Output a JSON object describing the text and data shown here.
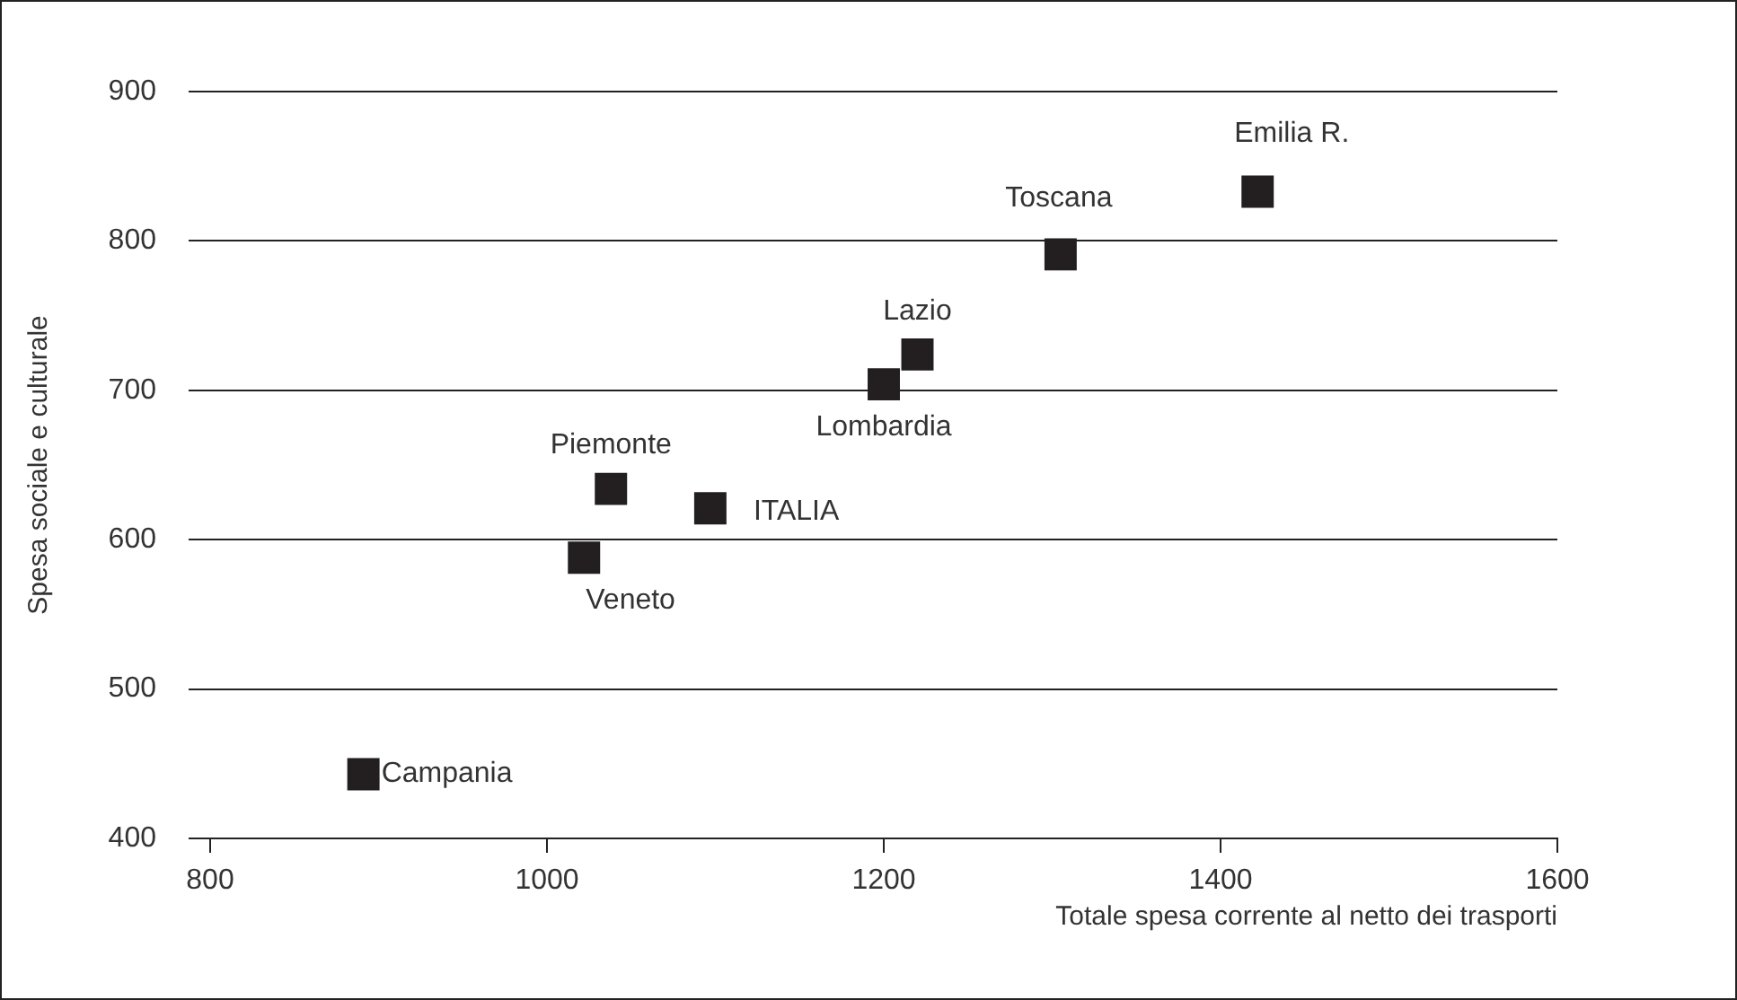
{
  "chart_data": {
    "type": "scatter",
    "xlabel": "Totale spesa corrente al netto dei trasporti",
    "ylabel": "Spesa sociale e culturale",
    "x": [
      891,
      1022,
      1038,
      1097,
      1200,
      1220,
      1305,
      1422
    ],
    "values": [
      443,
      588,
      634,
      621,
      704,
      724,
      791,
      833
    ],
    "color": "#231f20",
    "marker": "square",
    "grid": "y",
    "xlim": [
      800,
      1600
    ],
    "xticks": [
      800,
      1000,
      1200,
      1400,
      1600
    ],
    "ylim": [
      400,
      900
    ],
    "yticks": [
      400,
      500,
      600,
      700,
      800,
      900
    ],
    "annotations": [
      {
        "text": "Campania",
        "x": 891,
        "y": 443
      },
      {
        "text": "Veneto",
        "x": 1022,
        "y": 588
      },
      {
        "text": "Piemonte",
        "x": 1038,
        "y": 634
      },
      {
        "text": "ITALIA",
        "x": 1097,
        "y": 621
      },
      {
        "text": "Lombardia",
        "x": 1200,
        "y": 704
      },
      {
        "text": "Lazio",
        "x": 1220,
        "y": 724
      },
      {
        "text": "Toscana",
        "x": 1305,
        "y": 791
      },
      {
        "text": "Emilia R.",
        "x": 1422,
        "y": 833
      }
    ]
  }
}
